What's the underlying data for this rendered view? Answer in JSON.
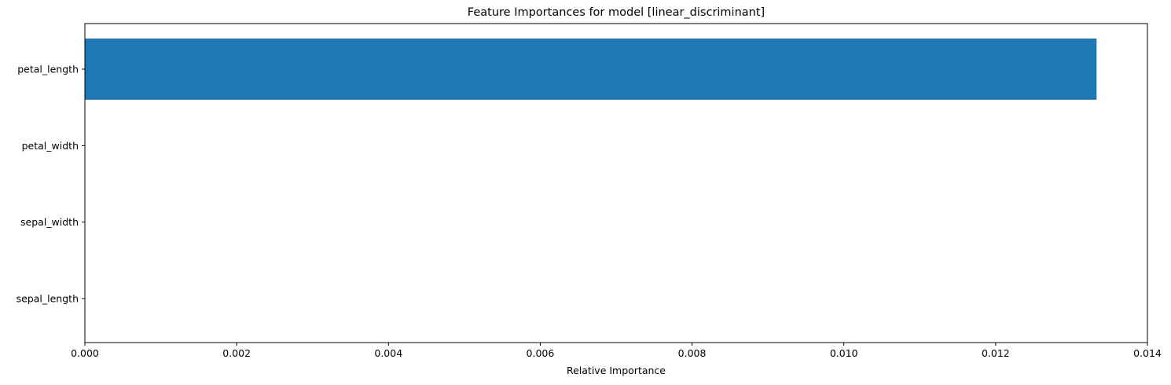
{
  "chart_data": {
    "type": "bar",
    "orientation": "horizontal",
    "title": "Feature Importances for model [linear_discriminant]",
    "xlabel": "Relative Importance",
    "ylabel": "",
    "categories": [
      "sepal_length",
      "sepal_width",
      "petal_width",
      "petal_length"
    ],
    "values": [
      0.0,
      0.0,
      0.0,
      0.01333
    ],
    "xlim": [
      0,
      0.014
    ],
    "xticks": [
      "0.000",
      "0.002",
      "0.004",
      "0.006",
      "0.008",
      "0.010",
      "0.012",
      "0.014"
    ],
    "bar_color": "#1f77b4",
    "grid": false,
    "legend": "none"
  }
}
